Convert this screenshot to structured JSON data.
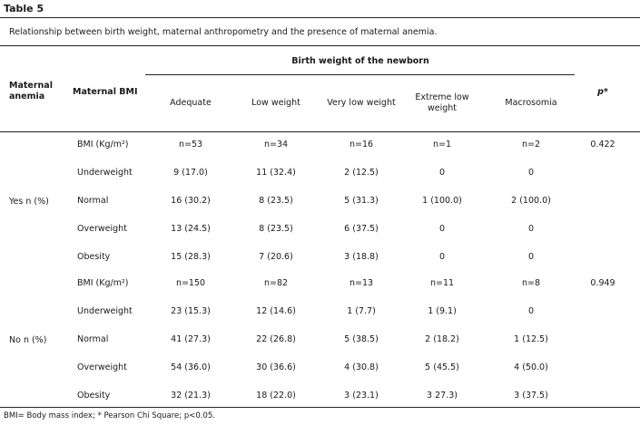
{
  "title": "Table 5",
  "caption": "Relationship between birth weight, maternal anthropometry and the presence of maternal anemia.",
  "headers": {
    "maternal_anemia_1": "Maternal",
    "maternal_anemia_2": "anemia",
    "maternal_bmi": "Maternal BMI",
    "birth_weight": "Birth weight of the newborn",
    "p": "p*",
    "adequate": "Adequate",
    "low": "Low weight",
    "very_low": "Very low weight",
    "extreme_low_1": "Extreme low",
    "extreme_low_2": "weight",
    "macrosomia": "Macrosomia"
  },
  "groups": [
    {
      "label": "Yes n (%)",
      "rows": [
        {
          "bmi": "BMI (Kg/m²)",
          "adequate": "n=53",
          "low": "n=34",
          "very_low": "n=16",
          "extreme_low": "n=1",
          "macrosomia": "n=2",
          "p": "0.422"
        },
        {
          "bmi": "Underweight",
          "adequate": "9 (17.0)",
          "low": "11 (32.4)",
          "very_low": "2 (12.5)",
          "extreme_low": "0",
          "macrosomia": "0",
          "p": ""
        },
        {
          "bmi": "Normal",
          "adequate": "16 (30.2)",
          "low": "8 (23.5)",
          "very_low": "5 (31.3)",
          "extreme_low": "1 (100.0)",
          "macrosomia": "2 (100.0)",
          "p": ""
        },
        {
          "bmi": "Overweight",
          "adequate": "13 (24.5)",
          "low": "8 (23.5)",
          "very_low": "6 (37.5)",
          "extreme_low": "0",
          "macrosomia": "0",
          "p": ""
        },
        {
          "bmi": "Obesity",
          "adequate": "15 (28.3)",
          "low": "7 (20.6)",
          "very_low": "3 (18.8)",
          "extreme_low": "0",
          "macrosomia": "0",
          "p": ""
        }
      ]
    },
    {
      "label": "No n (%)",
      "rows": [
        {
          "bmi": "BMI (Kg/m²)",
          "adequate": "n=150",
          "low": "n=82",
          "very_low": "n=13",
          "extreme_low": "n=11",
          "macrosomia": "n=8",
          "p": "0.949"
        },
        {
          "bmi": "Underweight",
          "adequate": "23 (15.3)",
          "low": "12 (14.6)",
          "very_low": "1 (7.7)",
          "extreme_low": "1 (9.1)",
          "macrosomia": "0",
          "p": ""
        },
        {
          "bmi": "Normal",
          "adequate": "41 (27.3)",
          "low": "22 (26.8)",
          "very_low": "5 (38.5)",
          "extreme_low": "2 (18.2)",
          "macrosomia": "1 (12.5)",
          "p": ""
        },
        {
          "bmi": "Overweight",
          "adequate": "54 (36.0)",
          "low": "30 (36.6)",
          "very_low": "4 (30.8)",
          "extreme_low": "5 (45.5)",
          "macrosomia": "4 (50.0)",
          "p": ""
        },
        {
          "bmi": "Obesity",
          "adequate": "32 (21.3)",
          "low": "18 (22.0)",
          "very_low": "3 (23.1)",
          "extreme_low": "3 27.3)",
          "macrosomia": "3 (37.5)",
          "p": ""
        }
      ]
    }
  ],
  "footnote": "BMI= Body mass index; * Pearson Chi Square; p<0.05."
}
